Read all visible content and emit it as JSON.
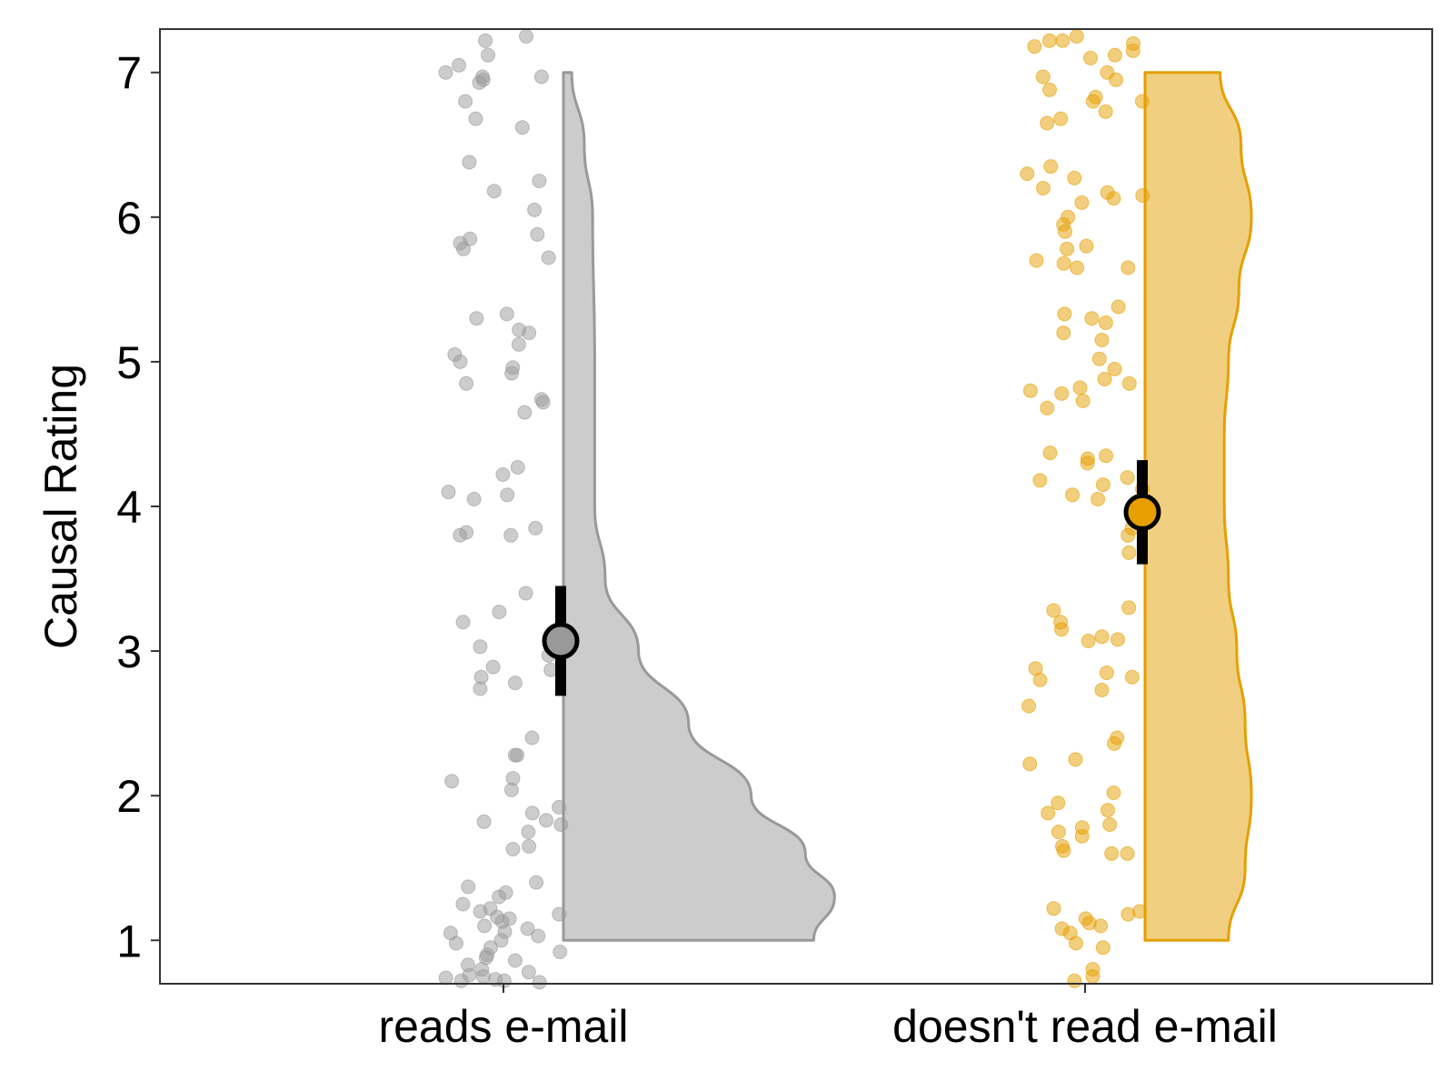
{
  "chart_data": {
    "type": "raincloud",
    "title": "",
    "xlabel": "",
    "ylabel": "Causal Rating",
    "ylim": [
      0.7,
      7.3
    ],
    "yticks": [
      1,
      2,
      3,
      4,
      5,
      6,
      7
    ],
    "grid": false,
    "legend": "none",
    "categories": [
      "reads e-mail",
      "doesn't read e-mail"
    ],
    "series": [
      {
        "category": "reads e-mail",
        "color": "#999999",
        "fill": "#cccccc",
        "mean": 3.07,
        "ci": [
          2.69,
          3.45
        ],
        "density": [
          [
            1.0,
            0.6
          ],
          [
            1.3,
            0.65
          ],
          [
            1.6,
            0.58
          ],
          [
            2.0,
            0.45
          ],
          [
            2.5,
            0.3
          ],
          [
            3.0,
            0.18
          ],
          [
            3.5,
            0.1
          ],
          [
            4.0,
            0.075
          ],
          [
            5.0,
            0.075
          ],
          [
            6.0,
            0.07
          ],
          [
            6.5,
            0.05
          ],
          [
            7.0,
            0.02
          ]
        ],
        "points": [
          7.22,
          7.25,
          7.12,
          7.0,
          6.97,
          6.95,
          6.97,
          7.05,
          6.93,
          6.8,
          6.68,
          6.62,
          6.38,
          6.25,
          6.18,
          6.05,
          5.88,
          5.85,
          5.82,
          5.78,
          5.72,
          5.33,
          5.3,
          5.22,
          5.2,
          5.12,
          5.05,
          5.0,
          4.96,
          4.92,
          4.85,
          4.74,
          4.72,
          4.65,
          4.27,
          4.22,
          4.1,
          4.08,
          4.05,
          3.85,
          3.8,
          3.8,
          3.82,
          3.4,
          3.27,
          3.2,
          3.03,
          2.97,
          2.89,
          2.87,
          2.82,
          2.78,
          2.74,
          2.4,
          2.28,
          2.28,
          2.12,
          2.1,
          2.04,
          1.92,
          1.88,
          1.83,
          1.82,
          1.8,
          1.75,
          1.65,
          1.63,
          1.4,
          1.37,
          1.33,
          1.3,
          1.25,
          1.22,
          1.2,
          1.18,
          1.16,
          1.15,
          1.13,
          1.1,
          1.08,
          1.06,
          1.05,
          1.03,
          1.0,
          0.98,
          0.95,
          0.92,
          0.9,
          0.88,
          0.86,
          0.83,
          0.8,
          0.78,
          0.76,
          0.74,
          0.72,
          0.71,
          0.73,
          0.75,
          0.72
        ]
      },
      {
        "category": "doesn't read e-mail",
        "color": "#e69f00",
        "fill": "#f0cf80",
        "mean": 3.96,
        "ci": [
          3.6,
          4.32
        ],
        "density": [
          [
            1.0,
            0.2
          ],
          [
            1.5,
            0.24
          ],
          [
            2.0,
            0.255
          ],
          [
            2.5,
            0.24
          ],
          [
            3.0,
            0.22
          ],
          [
            3.5,
            0.2
          ],
          [
            4.0,
            0.19
          ],
          [
            4.5,
            0.19
          ],
          [
            5.0,
            0.2
          ],
          [
            5.5,
            0.225
          ],
          [
            6.0,
            0.255
          ],
          [
            6.5,
            0.23
          ],
          [
            7.0,
            0.18
          ]
        ],
        "points": [
          7.25,
          7.22,
          7.2,
          7.18,
          7.15,
          7.12,
          7.1,
          7.22,
          7.0,
          6.97,
          6.95,
          6.88,
          6.83,
          6.8,
          6.8,
          6.73,
          6.68,
          6.65,
          6.35,
          6.3,
          6.27,
          6.2,
          6.17,
          6.15,
          6.13,
          6.1,
          6.0,
          5.95,
          5.9,
          5.8,
          5.78,
          5.7,
          5.68,
          5.65,
          5.65,
          5.38,
          5.33,
          5.3,
          5.27,
          5.2,
          5.15,
          5.02,
          4.95,
          4.88,
          4.85,
          4.82,
          4.8,
          4.78,
          4.73,
          4.68,
          4.37,
          4.35,
          4.33,
          4.3,
          4.2,
          4.18,
          4.15,
          4.12,
          4.08,
          4.05,
          3.85,
          3.8,
          3.68,
          3.3,
          3.28,
          3.2,
          3.15,
          3.1,
          3.08,
          3.07,
          2.88,
          2.85,
          2.82,
          2.8,
          2.73,
          2.62,
          2.4,
          2.36,
          2.25,
          2.22,
          2.02,
          1.95,
          1.9,
          1.88,
          1.8,
          1.78,
          1.75,
          1.72,
          1.65,
          1.62,
          1.6,
          1.6,
          1.22,
          1.2,
          1.18,
          1.15,
          1.12,
          1.1,
          1.08,
          1.05,
          0.98,
          0.95,
          0.8,
          0.75,
          0.72
        ]
      }
    ]
  }
}
